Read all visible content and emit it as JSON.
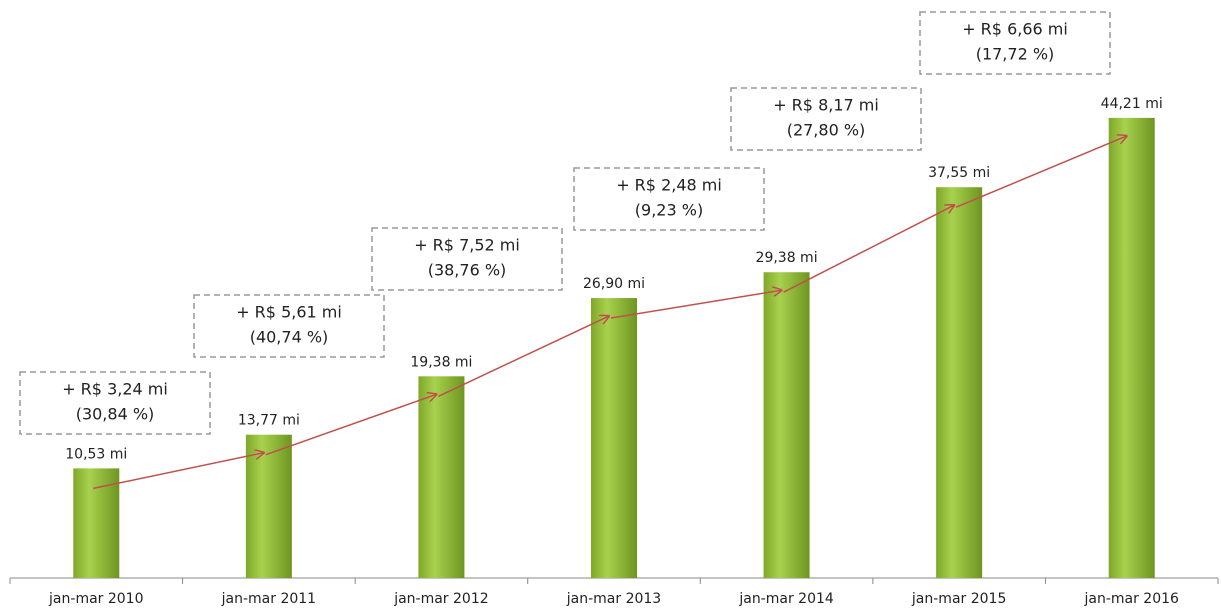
{
  "chart_data": {
    "type": "bar",
    "categories": [
      "jan-mar 2010",
      "jan-mar 2011",
      "jan-mar 2012",
      "jan-mar 2013",
      "jan-mar 2014",
      "jan-mar 2015",
      "jan-mar 2016"
    ],
    "values": [
      10.53,
      13.77,
      19.38,
      26.9,
      29.38,
      37.55,
      44.21
    ],
    "value_labels": [
      "10,53 mi",
      "13,77 mi",
      "19,38 mi",
      "26,90 mi",
      "29,38 mi",
      "37,55 mi",
      "44,21 mi"
    ],
    "color": "#8fbc35",
    "ylim": [
      0,
      54
    ],
    "annotations": [
      [
        "+ R$ 3,24 mi",
        "(30,84 %)"
      ],
      [
        "+ R$ 5,61 mi",
        "(40,74 %)"
      ],
      [
        "+ R$ 7,52 mi",
        "(38,76 %)"
      ],
      [
        "+ R$ 2,48 mi",
        "(9,23 %)"
      ],
      [
        "+ R$ 8,17 mi",
        "(27,80 %)"
      ],
      [
        "+ R$ 6,66 mi",
        "(17,72 %)"
      ]
    ]
  }
}
